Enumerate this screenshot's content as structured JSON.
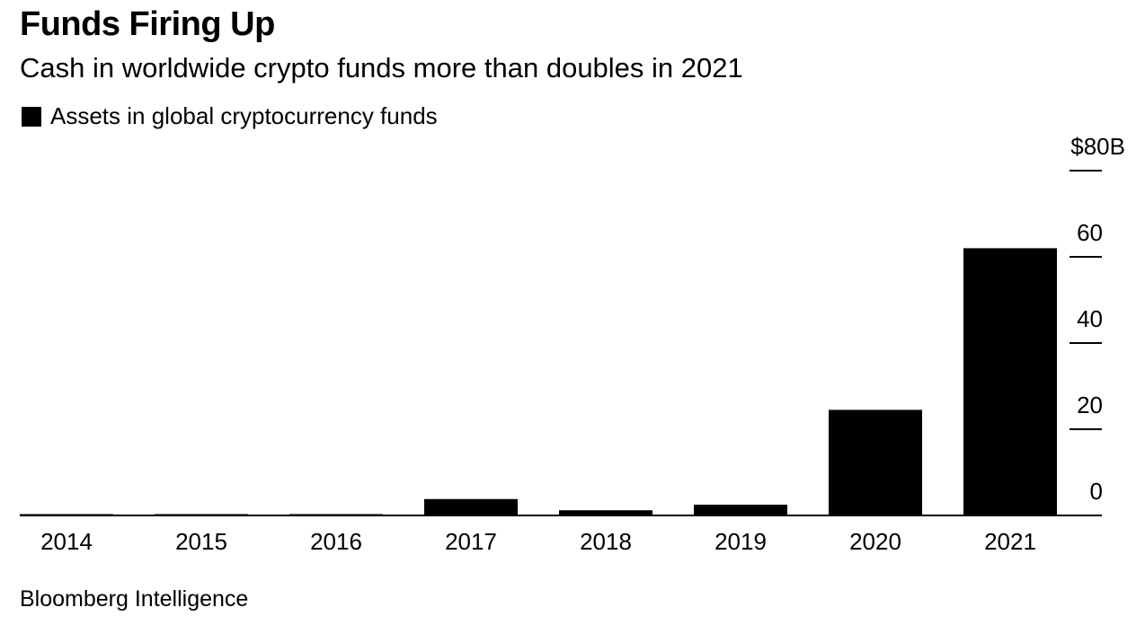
{
  "header": {
    "title": "Funds Firing Up",
    "subtitle": "Cash in worldwide crypto funds more than doubles in 2021"
  },
  "legend": {
    "label": "Assets in global cryptocurrency funds"
  },
  "footer": {
    "source": "Bloomberg Intelligence"
  },
  "chart_data": {
    "type": "bar",
    "title": "Funds Firing Up",
    "subtitle": "Cash in worldwide crypto funds more than doubles in 2021",
    "categories": [
      "2014",
      "2015",
      "2016",
      "2017",
      "2018",
      "2019",
      "2020",
      "2021"
    ],
    "series": [
      {
        "name": "Assets in global cryptocurrency funds",
        "values": [
          0.1,
          0.2,
          0.3,
          3.8,
          1.2,
          2.5,
          24.5,
          62
        ],
        "color": "#000000"
      }
    ],
    "y_ticks": [
      0,
      20,
      40,
      60,
      80
    ],
    "y_tick_labels": [
      "0",
      "20",
      "40",
      "60",
      "$80B"
    ],
    "ylim": [
      0,
      80
    ],
    "xlabel": "",
    "ylabel": "",
    "y_axis_position": "right",
    "grid": false,
    "legend_position": "top-left"
  }
}
